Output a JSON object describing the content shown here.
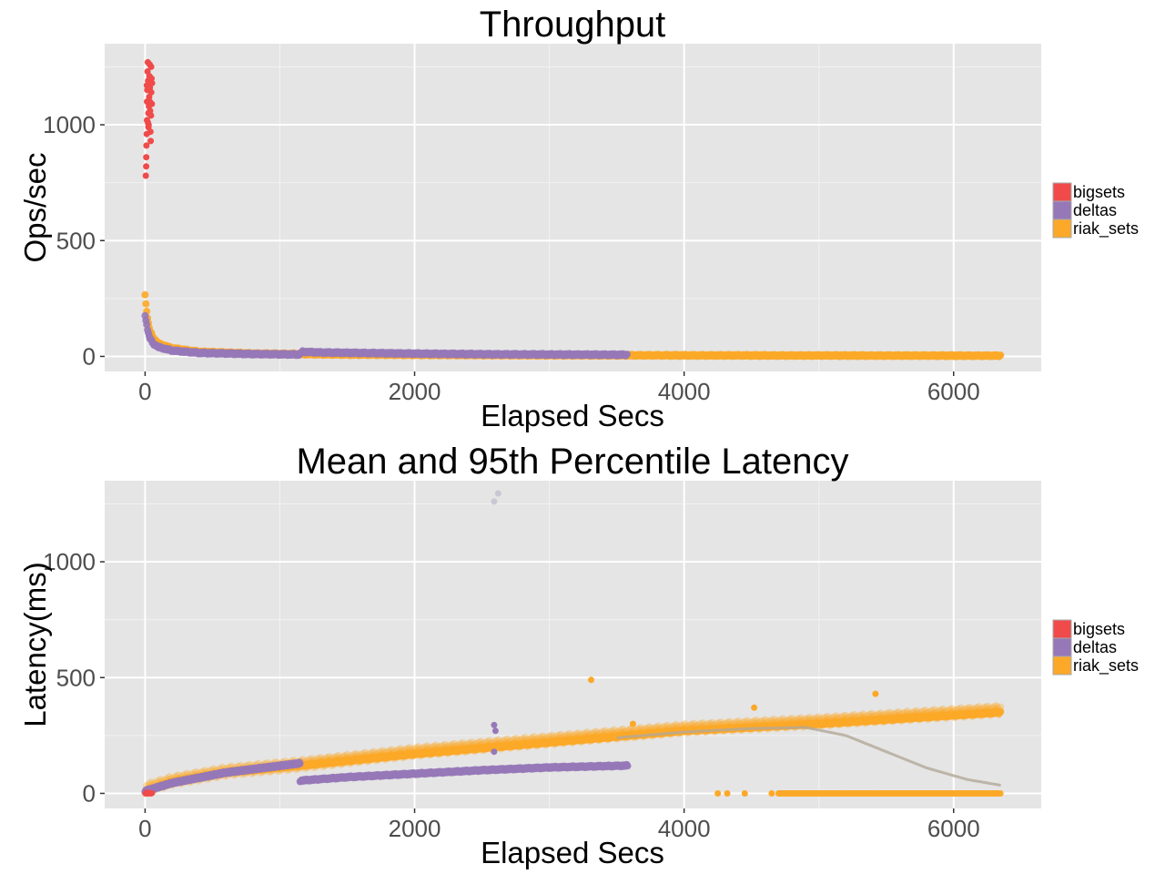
{
  "chart_data": [
    {
      "type": "scatter",
      "title": "Throughput",
      "xlabel": "Elapsed Secs",
      "ylabel": "Ops/sec",
      "xlim": [
        -300,
        6650
      ],
      "ylim": [
        -65,
        1350
      ],
      "xticks": [
        0,
        2000,
        4000,
        6000
      ],
      "xtick_labels": [
        "0",
        "2000",
        "4000",
        "6000"
      ],
      "yticks": [
        0,
        500,
        1000
      ],
      "ytick_labels": [
        "0",
        "500",
        "1000"
      ],
      "legend": {
        "placement": "right",
        "entries": [
          {
            "name": "bigsets",
            "color": "#f04a4a"
          },
          {
            "name": "deltas",
            "color": "#9678b8"
          },
          {
            "name": "riak_sets",
            "color": "#fca828"
          }
        ]
      },
      "series": [
        {
          "name": "bigsets",
          "color": "#f04a4a",
          "points": [
            [
              5,
              780
            ],
            [
              8,
              820
            ],
            [
              10,
              910
            ],
            [
              12,
              960
            ],
            [
              14,
              1020
            ],
            [
              15,
              1100
            ],
            [
              16,
              1150
            ],
            [
              18,
              1230
            ],
            [
              20,
              1270
            ],
            [
              22,
              1190
            ],
            [
              24,
              1050
            ],
            [
              25,
              990
            ],
            [
              26,
              1000
            ],
            [
              28,
              1080
            ],
            [
              30,
              1120
            ],
            [
              32,
              1210
            ],
            [
              34,
              1260
            ],
            [
              36,
              1160
            ],
            [
              38,
              1060
            ],
            [
              40,
              970
            ],
            [
              42,
              930
            ],
            [
              44,
              1040
            ],
            [
              46,
              1140
            ],
            [
              48,
              1200
            ],
            [
              50,
              1090
            ],
            [
              52,
              1180
            ],
            [
              9,
              860
            ],
            [
              13,
              1170
            ],
            [
              21,
              1010
            ],
            [
              35,
              1100
            ],
            [
              45,
              1250
            ]
          ]
        },
        {
          "name": "riak_sets",
          "color": "#fca828",
          "curve": [
            [
              0,
              270
            ],
            [
              10,
              200
            ],
            [
              30,
              120
            ],
            [
              60,
              80
            ],
            [
              100,
              55
            ],
            [
              200,
              35
            ],
            [
              400,
              20
            ],
            [
              800,
              12
            ],
            [
              1500,
              8
            ],
            [
              3000,
              5
            ],
            [
              4500,
              4
            ],
            [
              6350,
              3
            ]
          ]
        },
        {
          "name": "deltas",
          "color": "#9678b8",
          "curve": [
            [
              0,
              180
            ],
            [
              10,
              140
            ],
            [
              30,
              85
            ],
            [
              60,
              55
            ],
            [
              100,
              40
            ],
            [
              200,
              25
            ],
            [
              400,
              15
            ],
            [
              800,
              10
            ],
            [
              1150,
              8
            ],
            [
              1160,
              20
            ],
            [
              1300,
              17
            ],
            [
              2000,
              12
            ],
            [
              2600,
              9
            ],
            [
              3580,
              7
            ]
          ]
        }
      ]
    },
    {
      "type": "scatter",
      "title": "Mean and 95th Percentile Latency",
      "xlabel": "Elapsed Secs",
      "ylabel": "Latency(ms)",
      "xlim": [
        -300,
        6650
      ],
      "ylim": [
        -65,
        1350
      ],
      "xticks": [
        0,
        2000,
        4000,
        6000
      ],
      "xtick_labels": [
        "0",
        "2000",
        "4000",
        "6000"
      ],
      "yticks": [
        0,
        500,
        1000
      ],
      "ytick_labels": [
        "0",
        "500",
        "1000"
      ],
      "legend": {
        "placement": "right",
        "entries": [
          {
            "name": "bigsets",
            "color": "#f04a4a"
          },
          {
            "name": "deltas",
            "color": "#9678b8"
          },
          {
            "name": "riak_sets",
            "color": "#fca828"
          }
        ]
      },
      "series": [
        {
          "name": "riak_sets 95th",
          "color": "#fca828",
          "faint": true,
          "curve": [
            [
              0,
              20
            ],
            [
              200,
              55
            ],
            [
              600,
              95
            ],
            [
              1150,
              125
            ],
            [
              2000,
              180
            ],
            [
              3000,
              230
            ],
            [
              4000,
              280
            ],
            [
              5000,
              310
            ],
            [
              6350,
              360
            ]
          ]
        },
        {
          "name": "riak_sets mean",
          "color": "#fca828",
          "curve": [
            [
              0,
              10
            ],
            [
              200,
              50
            ],
            [
              600,
              90
            ],
            [
              1150,
              120
            ],
            [
              2000,
              170
            ],
            [
              3000,
              220
            ],
            [
              4000,
              270
            ],
            [
              5000,
              300
            ],
            [
              6350,
              350
            ]
          ]
        },
        {
          "name": "riak_sets zero",
          "color": "#fca828",
          "x_range": [
            4700,
            6350
          ],
          "y": 0,
          "extra_points": [
            [
              4250,
              0
            ],
            [
              4320,
              0
            ],
            [
              4450,
              0
            ],
            [
              4650,
              0
            ]
          ]
        },
        {
          "name": "riak_sets outliers",
          "color": "#fca828",
          "points": [
            [
              3310,
              490
            ],
            [
              5420,
              430
            ],
            [
              4520,
              370
            ],
            [
              3620,
              300
            ]
          ]
        },
        {
          "name": "deltas mean",
          "color": "#9678b8",
          "curve": [
            [
              0,
              10
            ],
            [
              200,
              45
            ],
            [
              600,
              90
            ],
            [
              1150,
              130
            ]
          ]
        },
        {
          "name": "deltas 95th",
          "color": "#9678b8",
          "curve": [
            [
              1150,
              55
            ],
            [
              1500,
              70
            ],
            [
              2000,
              85
            ],
            [
              2500,
              100
            ],
            [
              3000,
              112
            ],
            [
              3580,
              120
            ]
          ]
        },
        {
          "name": "deltas outliers",
          "color": "#9678b8",
          "points": [
            [
              2590,
              295
            ],
            [
              2600,
              270
            ],
            [
              2590,
              180
            ]
          ]
        },
        {
          "name": "bigsets",
          "color": "#f04a4a",
          "points": [
            [
              5,
              0
            ],
            [
              10,
              3
            ],
            [
              20,
              0
            ],
            [
              30,
              2
            ],
            [
              40,
              0
            ],
            [
              50,
              1
            ]
          ]
        },
        {
          "name": "faint outliers",
          "color": "#b8b3c4",
          "faint": true,
          "points": [
            [
              2590,
              1260
            ],
            [
              2620,
              1295
            ]
          ]
        },
        {
          "name": "smooth",
          "color": "#b3a898",
          "line": true,
          "curve": [
            [
              3500,
              240
            ],
            [
              4000,
              265
            ],
            [
              4500,
              280
            ],
            [
              4900,
              285
            ],
            [
              5200,
              250
            ],
            [
              5500,
              180
            ],
            [
              5800,
              110
            ],
            [
              6100,
              60
            ],
            [
              6350,
              35
            ]
          ]
        }
      ]
    }
  ]
}
